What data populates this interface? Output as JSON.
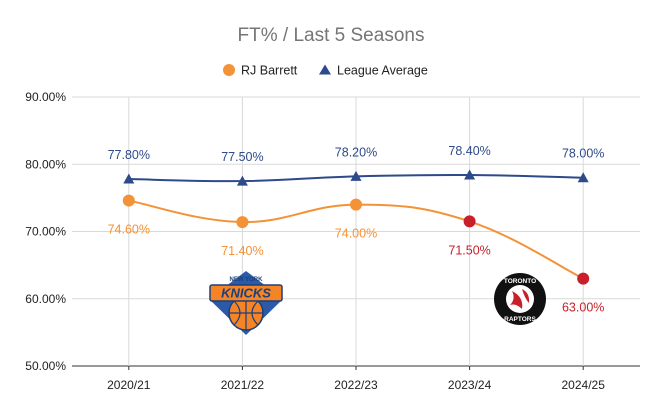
{
  "chart_data": {
    "type": "line",
    "title": "FT% / Last 5 Seasons",
    "categories": [
      "2020/21",
      "2021/22",
      "2022/23",
      "2023/24",
      "2024/25"
    ],
    "ylim": [
      50,
      90
    ],
    "yticks": [
      "50.00%",
      "60.00%",
      "70.00%",
      "80.00%",
      "90.00%"
    ],
    "grid": true,
    "legend_position": "top",
    "series": [
      {
        "name": "RJ Barrett",
        "values": [
          74.6,
          71.4,
          74.0,
          71.5,
          63.0
        ],
        "labels": [
          "74.60%",
          "71.40%",
          "74.00%",
          "71.50%",
          "63.00%"
        ],
        "color": "#f39237",
        "point_colors": [
          "#f39237",
          "#f39237",
          "#f39237",
          "#c8202a",
          "#c8202a"
        ],
        "label_colors": [
          "#f39237",
          "#f39237",
          "#f39237",
          "#c8202a",
          "#c8202a"
        ],
        "marker": "circle",
        "label_position": "below"
      },
      {
        "name": "League Average",
        "values": [
          77.8,
          77.5,
          78.2,
          78.4,
          78.0
        ],
        "labels": [
          "77.80%",
          "77.50%",
          "78.20%",
          "78.40%",
          "78.00%"
        ],
        "color": "#2d4a8a",
        "point_colors": [
          "#2d4a8a",
          "#2d4a8a",
          "#2d4a8a",
          "#2d4a8a",
          "#2d4a8a"
        ],
        "label_colors": [
          "#2d4a8a",
          "#2d4a8a",
          "#2d4a8a",
          "#2d4a8a",
          "#2d4a8a"
        ],
        "marker": "triangle",
        "label_position": "above"
      }
    ],
    "logos": [
      {
        "name": "knicks-logo",
        "text": "KNICKS",
        "subtext": "NEW YORK",
        "near_category": "2021/22"
      },
      {
        "name": "raptors-logo",
        "text": "TORONTO",
        "subtext": "RAPTORS",
        "near_category": "2023/24"
      }
    ]
  }
}
